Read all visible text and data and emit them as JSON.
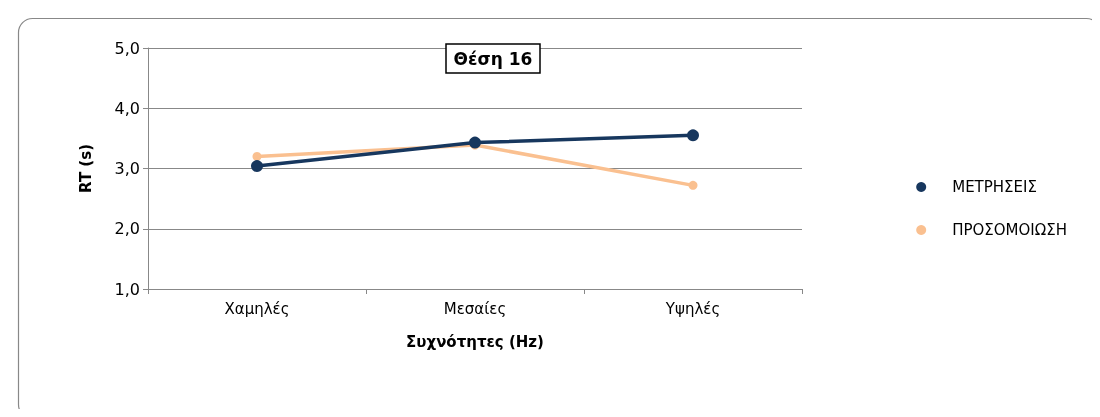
{
  "chart_data": {
    "type": "line",
    "title": "Θέση 16",
    "xlabel": "Συχνότητες (Hz)",
    "ylabel": "RT (s)",
    "categories": [
      "Χαμηλές",
      "Μεσαίες",
      "Υψηλές"
    ],
    "series": [
      {
        "name": "ΜΕΤΡΗΣΕΙΣ",
        "color": "#17375e",
        "values": [
          3.04,
          3.43,
          3.55
        ]
      },
      {
        "name": "ΠΡΟΣΟΜΟΙΩΣΗ",
        "color": "#fac090",
        "values": [
          3.2,
          3.39,
          2.72
        ]
      }
    ],
    "ylim": [
      1,
      5
    ],
    "yticks": [
      {
        "value": 1,
        "label": "1,0"
      },
      {
        "value": 2,
        "label": "2,0"
      },
      {
        "value": 3,
        "label": "3,0"
      },
      {
        "value": 4,
        "label": "4,0"
      },
      {
        "value": 5,
        "label": "5,0"
      }
    ],
    "grid": "y",
    "legend": "right",
    "marker": "circle",
    "line_style": "solid"
  }
}
